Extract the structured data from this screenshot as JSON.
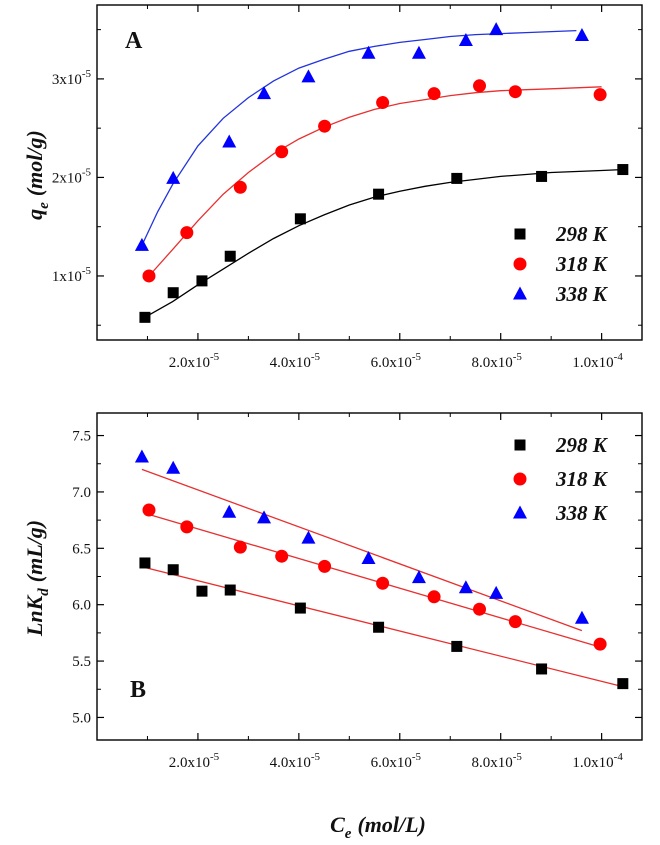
{
  "chart_data": [
    {
      "type": "scatter",
      "panel": "A",
      "ylabel_main": "q",
      "ylabel_sub": "e",
      "ylabel_unit": "(mol/g)",
      "xlim": [
        0.0,
        0.000108
      ],
      "ylim": [
        3.5e-06,
        3.75e-05
      ],
      "x_ticks": [
        {
          "value": 2e-05,
          "mant": "2.0x10",
          "exp": "-5"
        },
        {
          "value": 4e-05,
          "mant": "4.0x10",
          "exp": "-5"
        },
        {
          "value": 6e-05,
          "mant": "6.0x10",
          "exp": "-5"
        },
        {
          "value": 8e-05,
          "mant": "8.0x10",
          "exp": "-5"
        },
        {
          "value": 0.0001,
          "mant": "1.0x10",
          "exp": "-4"
        }
      ],
      "y_ticks": [
        {
          "value": 1e-05,
          "mant": "1x10",
          "exp": "-5"
        },
        {
          "value": 2e-05,
          "mant": "2x10",
          "exp": "-5"
        },
        {
          "value": 3e-05,
          "mant": "3x10",
          "exp": "-5"
        }
      ],
      "series": [
        {
          "name": "298 K",
          "color": "#000000",
          "marker": "square",
          "fit_color": "#000000",
          "x": [
            9.5e-06,
            1.51e-05,
            2.08e-05,
            2.64e-05,
            4.03e-05,
            5.58e-05,
            7.13e-05,
            8.81e-05,
            0.0001042
          ],
          "y": [
            5.8e-06,
            8.3e-06,
            9.5e-06,
            1.2e-05,
            1.58e-05,
            1.83e-05,
            1.99e-05,
            2.01e-05,
            2.08e-05
          ],
          "fit_x": [
            9.5e-06,
            1.5e-05,
            2e-05,
            2.5e-05,
            3e-05,
            3.5e-05,
            4e-05,
            4.5e-05,
            5e-05,
            5.5e-05,
            6e-05,
            6.5e-05,
            7e-05,
            7.5e-05,
            8e-05,
            8.5e-05,
            9e-05,
            9.5e-05,
            0.0001,
            0.0001045
          ],
          "fit_y": [
            5.8e-06,
            7.4e-06,
            9.1e-06,
            1.07e-05,
            1.23e-05,
            1.38e-05,
            1.51e-05,
            1.62e-05,
            1.72e-05,
            1.8e-05,
            1.86e-05,
            1.91e-05,
            1.95e-05,
            1.98e-05,
            2.01e-05,
            2.03e-05,
            2.05e-05,
            2.06e-05,
            2.07e-05,
            2.08e-05
          ]
        },
        {
          "name": "318 K",
          "color": "#ff0000",
          "marker": "circle",
          "fit_color": "#e83030",
          "x": [
            1.03e-05,
            1.78e-05,
            2.84e-05,
            3.66e-05,
            4.51e-05,
            5.66e-05,
            6.68e-05,
            7.58e-05,
            8.29e-05,
            9.97e-05
          ],
          "y": [
            1e-05,
            1.44e-05,
            1.9e-05,
            2.26e-05,
            2.52e-05,
            2.76e-05,
            2.85e-05,
            2.93e-05,
            2.87e-05,
            2.84e-05
          ],
          "fit_x": [
            1.03e-05,
            1.5e-05,
            2e-05,
            2.5e-05,
            3e-05,
            3.5e-05,
            4e-05,
            4.5e-05,
            5e-05,
            5.5e-05,
            6e-05,
            6.5e-05,
            7e-05,
            7.5e-05,
            8e-05,
            8.5e-05,
            9e-05,
            9.5e-05,
            0.0001
          ],
          "fit_y": [
            1e-05,
            1.27e-05,
            1.56e-05,
            1.83e-05,
            2.05e-05,
            2.24e-05,
            2.39e-05,
            2.51e-05,
            2.61e-05,
            2.69e-05,
            2.75e-05,
            2.79e-05,
            2.83e-05,
            2.86e-05,
            2.88e-05,
            2.89e-05,
            2.9e-05,
            2.91e-05,
            2.92e-05
          ]
        },
        {
          "name": "338 K",
          "color": "#0000ff",
          "marker": "triangle",
          "fit_color": "#2233dd",
          "x": [
            8.9e-06,
            1.51e-05,
            2.62e-05,
            3.31e-05,
            4.19e-05,
            5.38e-05,
            6.38e-05,
            7.31e-05,
            7.91e-05,
            9.61e-05
          ],
          "y": [
            1.31e-05,
            1.99e-05,
            2.36e-05,
            2.85e-05,
            3.02e-05,
            3.26e-05,
            3.26e-05,
            3.39e-05,
            3.5e-05,
            3.44e-05
          ],
          "fit_x": [
            8.9e-06,
            1.2e-05,
            1.5e-05,
            2e-05,
            2.5e-05,
            3e-05,
            3.5e-05,
            4e-05,
            4.5e-05,
            5e-05,
            5.5e-05,
            6e-05,
            6.5e-05,
            7e-05,
            7.5e-05,
            8e-05,
            8.5e-05,
            9e-05,
            9.5e-05
          ],
          "fit_y": [
            1.31e-05,
            1.65e-05,
            1.93e-05,
            2.32e-05,
            2.6e-05,
            2.81e-05,
            2.98e-05,
            3.11e-05,
            3.2e-05,
            3.28e-05,
            3.33e-05,
            3.37e-05,
            3.4e-05,
            3.43e-05,
            3.45e-05,
            3.46e-05,
            3.47e-05,
            3.48e-05,
            3.49e-05
          ]
        }
      ],
      "legend_position": "bottom-right"
    },
    {
      "type": "scatter",
      "panel": "B",
      "ylabel_main": "LnK",
      "ylabel_sub": "d",
      "ylabel_unit": "(mL/g)",
      "xlim": [
        0.0,
        0.000108
      ],
      "ylim": [
        4.8,
        7.7
      ],
      "x_ticks": [
        {
          "value": 2e-05,
          "mant": "2.0x10",
          "exp": "-5"
        },
        {
          "value": 4e-05,
          "mant": "4.0x10",
          "exp": "-5"
        },
        {
          "value": 6e-05,
          "mant": "6.0x10",
          "exp": "-5"
        },
        {
          "value": 8e-05,
          "mant": "8.0x10",
          "exp": "-5"
        },
        {
          "value": 0.0001,
          "mant": "1.0x10",
          "exp": "-4"
        }
      ],
      "y_ticks": [
        {
          "value": 5.0,
          "label": "5.0"
        },
        {
          "value": 5.5,
          "label": "5.5"
        },
        {
          "value": 6.0,
          "label": "6.0"
        },
        {
          "value": 6.5,
          "label": "6.5"
        },
        {
          "value": 7.0,
          "label": "7.0"
        },
        {
          "value": 7.5,
          "label": "7.5"
        }
      ],
      "series": [
        {
          "name": "298 K",
          "color": "#000000",
          "marker": "square",
          "fit_color": "#e83030",
          "x": [
            9.5e-06,
            1.51e-05,
            2.08e-05,
            2.64e-05,
            4.03e-05,
            5.58e-05,
            7.13e-05,
            8.81e-05,
            0.0001042
          ],
          "y": [
            6.37,
            6.31,
            6.12,
            6.13,
            5.97,
            5.8,
            5.63,
            5.43,
            5.3
          ],
          "fit_x": [
            9.5e-06,
            0.0001045
          ],
          "fit_y": [
            6.33,
            5.27
          ]
        },
        {
          "name": "318 K",
          "color": "#ff0000",
          "marker": "circle",
          "fit_color": "#e83030",
          "x": [
            1.03e-05,
            1.78e-05,
            2.84e-05,
            3.66e-05,
            4.51e-05,
            5.66e-05,
            6.68e-05,
            7.58e-05,
            8.29e-05,
            9.97e-05
          ],
          "y": [
            6.84,
            6.69,
            6.51,
            6.43,
            6.34,
            6.19,
            6.07,
            5.96,
            5.85,
            5.65
          ],
          "fit_x": [
            1.03e-05,
            0.0001
          ],
          "fit_y": [
            6.8,
            5.62
          ]
        },
        {
          "name": "338 K",
          "color": "#0000ff",
          "marker": "triangle",
          "fit_color": "#e83030",
          "x": [
            8.9e-06,
            1.51e-05,
            2.62e-05,
            3.31e-05,
            4.19e-05,
            5.38e-05,
            6.38e-05,
            7.31e-05,
            7.91e-05,
            9.61e-05
          ],
          "y": [
            7.31,
            7.21,
            6.82,
            6.77,
            6.59,
            6.41,
            6.24,
            6.15,
            6.1,
            5.88
          ],
          "fit_x": [
            8.9e-06,
            9.61e-05
          ],
          "fit_y": [
            7.2,
            5.77
          ]
        }
      ],
      "legend_position": "top-right"
    }
  ],
  "shared_xlabel": {
    "main": "C",
    "sub": "e",
    "unit": "(mol/L)"
  },
  "panels": {
    "a": "A",
    "b": "B"
  }
}
